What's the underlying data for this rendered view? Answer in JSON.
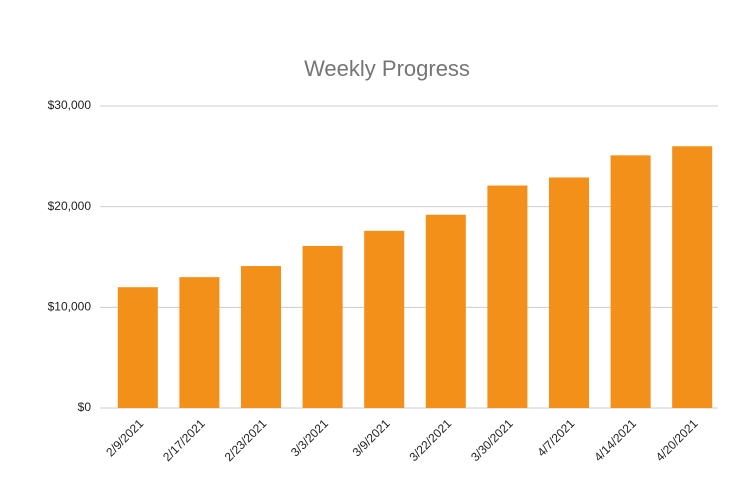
{
  "chart_data": {
    "type": "bar",
    "title": "Weekly Progress",
    "categories": [
      "2/9/2021",
      "2/17/2021",
      "2/23/2021",
      "3/3/2021",
      "3/9/2021",
      "3/22/2021",
      "3/30/2021",
      "4/7/2021",
      "4/14/2021",
      "4/20/2021"
    ],
    "values": [
      12000,
      13000,
      14100,
      16100,
      17600,
      19200,
      22100,
      22900,
      25100,
      26000
    ],
    "color": "#f39019",
    "ylim": [
      0,
      30000
    ],
    "yticks": [
      {
        "value": 0,
        "label": "$0"
      },
      {
        "value": 10000,
        "label": "$10,000"
      },
      {
        "value": 20000,
        "label": "$20,000"
      },
      {
        "value": 30000,
        "label": "$30,000"
      }
    ],
    "grid": true
  }
}
